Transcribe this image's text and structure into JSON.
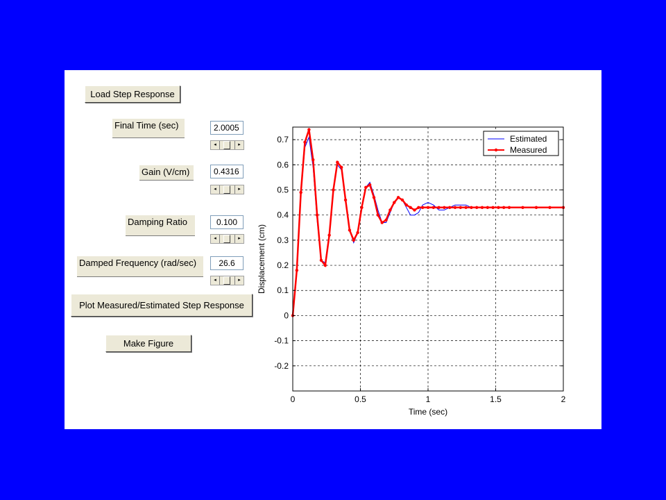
{
  "controls": {
    "load_button": "Load Step Response",
    "final_time_label": "Final Time (sec)",
    "final_time_value": "2.0005",
    "gain_label": "Gain (V/cm)",
    "gain_value": "0.4316",
    "damping_label": "Damping Ratio",
    "damping_value": "0.100",
    "freq_label": "Damped Frequency (rad/sec)",
    "freq_value": "26.6",
    "plot_button": "Plot Measured/Estimated Step Response",
    "make_figure_button": "Make Figure",
    "slider_left_arrow": "◂",
    "slider_right_arrow": "▸"
  },
  "colors": {
    "background": "#0000ff",
    "estimated": "#0000ff",
    "measured": "#ff0000"
  },
  "chart_data": {
    "type": "line",
    "xlabel": "Time (sec)",
    "ylabel": "Displacement (cm)",
    "xlim": [
      0,
      2
    ],
    "ylim": [
      -0.3,
      0.75
    ],
    "xticks": [
      0,
      0.5,
      1,
      1.5,
      2
    ],
    "xtick_labels": [
      "0",
      "0.5",
      "1",
      "1.5",
      "2"
    ],
    "yticks": [
      -0.2,
      -0.1,
      0,
      0.1,
      0.2,
      0.3,
      0.4,
      0.5,
      0.6,
      0.7
    ],
    "ytick_labels": [
      "-0.2",
      "-0.1",
      "0",
      "0.1",
      "0.2",
      "0.3",
      "0.4",
      "0.5",
      "0.6",
      "0.7"
    ],
    "grid": true,
    "legend_position": "top-right",
    "series": [
      {
        "name": "Estimated",
        "color": "#0000ff",
        "x": [
          0,
          0.03,
          0.06,
          0.09,
          0.12,
          0.15,
          0.18,
          0.21,
          0.24,
          0.27,
          0.3,
          0.33,
          0.36,
          0.39,
          0.42,
          0.45,
          0.48,
          0.51,
          0.54,
          0.57,
          0.6,
          0.63,
          0.66,
          0.69,
          0.72,
          0.75,
          0.78,
          0.81,
          0.84,
          0.87,
          0.9,
          0.93,
          0.96,
          1.0,
          1.04,
          1.08,
          1.12,
          1.16,
          1.2,
          1.24,
          1.28,
          1.32,
          1.36,
          1.4,
          1.44,
          1.48,
          1.52,
          1.56,
          1.6,
          1.7,
          1.8,
          1.9,
          2.0
        ],
        "y": [
          0,
          0.19,
          0.48,
          0.67,
          0.71,
          0.59,
          0.38,
          0.22,
          0.21,
          0.33,
          0.5,
          0.6,
          0.58,
          0.46,
          0.34,
          0.29,
          0.33,
          0.43,
          0.51,
          0.53,
          0.48,
          0.42,
          0.37,
          0.37,
          0.41,
          0.45,
          0.47,
          0.46,
          0.43,
          0.4,
          0.4,
          0.41,
          0.44,
          0.45,
          0.44,
          0.42,
          0.42,
          0.43,
          0.44,
          0.44,
          0.44,
          0.43,
          0.43,
          0.43,
          0.43,
          0.43,
          0.43,
          0.43,
          0.43,
          0.43,
          0.43,
          0.43,
          0.43
        ]
      },
      {
        "name": "Measured",
        "color": "#ff0000",
        "x": [
          0,
          0.03,
          0.06,
          0.09,
          0.12,
          0.15,
          0.18,
          0.21,
          0.24,
          0.27,
          0.3,
          0.33,
          0.36,
          0.39,
          0.42,
          0.45,
          0.48,
          0.51,
          0.54,
          0.57,
          0.6,
          0.63,
          0.66,
          0.69,
          0.72,
          0.75,
          0.78,
          0.81,
          0.84,
          0.87,
          0.9,
          0.93,
          0.96,
          1.0,
          1.04,
          1.08,
          1.12,
          1.16,
          1.2,
          1.24,
          1.28,
          1.32,
          1.36,
          1.4,
          1.44,
          1.48,
          1.52,
          1.56,
          1.6,
          1.7,
          1.8,
          1.9,
          2.0
        ],
        "y": [
          0,
          0.18,
          0.49,
          0.69,
          0.74,
          0.62,
          0.4,
          0.22,
          0.2,
          0.32,
          0.5,
          0.61,
          0.59,
          0.46,
          0.34,
          0.3,
          0.33,
          0.43,
          0.51,
          0.52,
          0.47,
          0.4,
          0.37,
          0.38,
          0.42,
          0.45,
          0.47,
          0.46,
          0.44,
          0.43,
          0.42,
          0.43,
          0.43,
          0.43,
          0.43,
          0.43,
          0.43,
          0.43,
          0.43,
          0.43,
          0.43,
          0.43,
          0.43,
          0.43,
          0.43,
          0.43,
          0.43,
          0.43,
          0.43,
          0.43,
          0.43,
          0.43,
          0.43
        ]
      }
    ]
  }
}
